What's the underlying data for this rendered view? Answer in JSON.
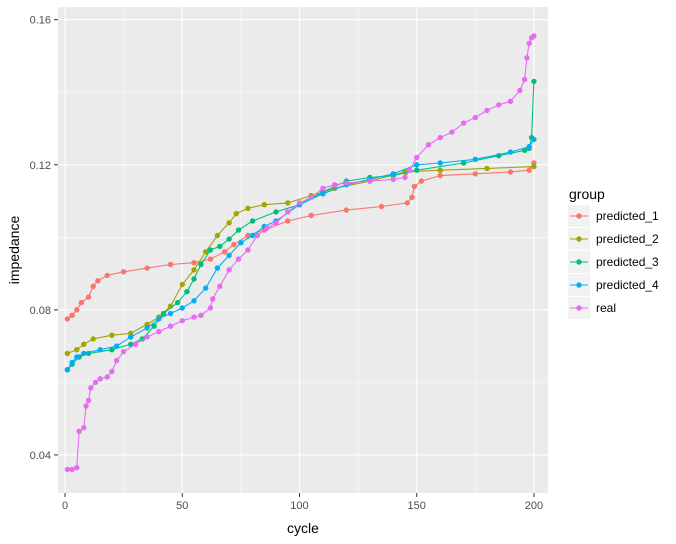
{
  "chart_data": {
    "type": "line",
    "title": "",
    "xlabel": "cycle",
    "ylabel": "impedance",
    "xlim": [
      -3,
      206
    ],
    "ylim": [
      0.0295,
      0.1635
    ],
    "x_ticks": [
      0,
      50,
      100,
      150,
      200
    ],
    "x_tick_labels": [
      "0",
      "50",
      "100",
      "150",
      "200"
    ],
    "y_ticks": [
      0.04,
      0.08,
      0.12,
      0.16
    ],
    "y_tick_labels": [
      "0.04",
      "0.08",
      "0.12",
      "0.16"
    ],
    "grid": true,
    "legend": {
      "title": "group",
      "position": "right"
    },
    "series": [
      {
        "name": "predicted_1",
        "color": "#F8766D",
        "points": [
          [
            1,
            0.0775
          ],
          [
            3,
            0.0785
          ],
          [
            5,
            0.08
          ],
          [
            7,
            0.082
          ],
          [
            10,
            0.0835
          ],
          [
            12,
            0.0865
          ],
          [
            14,
            0.088
          ],
          [
            18,
            0.0895
          ],
          [
            25,
            0.0905
          ],
          [
            35,
            0.0915
          ],
          [
            45,
            0.0925
          ],
          [
            55,
            0.093
          ],
          [
            62,
            0.094
          ],
          [
            68,
            0.096
          ],
          [
            72,
            0.098
          ],
          [
            78,
            0.1005
          ],
          [
            85,
            0.102
          ],
          [
            95,
            0.1045
          ],
          [
            105,
            0.106
          ],
          [
            120,
            0.1075
          ],
          [
            135,
            0.1085
          ],
          [
            146,
            0.1095
          ],
          [
            148,
            0.111
          ],
          [
            149,
            0.114
          ],
          [
            152,
            0.1155
          ],
          [
            160,
            0.117
          ],
          [
            175,
            0.1175
          ],
          [
            190,
            0.118
          ],
          [
            198,
            0.1185
          ],
          [
            200,
            0.1205
          ]
        ]
      },
      {
        "name": "predicted_2",
        "color": "#A3A500",
        "points": [
          [
            1,
            0.068
          ],
          [
            5,
            0.069
          ],
          [
            8,
            0.0705
          ],
          [
            12,
            0.072
          ],
          [
            20,
            0.073
          ],
          [
            28,
            0.0735
          ],
          [
            35,
            0.076
          ],
          [
            40,
            0.078
          ],
          [
            45,
            0.081
          ],
          [
            50,
            0.087
          ],
          [
            55,
            0.091
          ],
          [
            60,
            0.096
          ],
          [
            65,
            0.1005
          ],
          [
            70,
            0.104
          ],
          [
            73,
            0.1065
          ],
          [
            78,
            0.108
          ],
          [
            85,
            0.109
          ],
          [
            95,
            0.1095
          ],
          [
            105,
            0.1115
          ],
          [
            115,
            0.1135
          ],
          [
            130,
            0.1155
          ],
          [
            145,
            0.118
          ],
          [
            160,
            0.1185
          ],
          [
            180,
            0.119
          ],
          [
            200,
            0.1195
          ]
        ]
      },
      {
        "name": "predicted_3",
        "color": "#00BF7D",
        "points": [
          [
            1,
            0.0635
          ],
          [
            3,
            0.065
          ],
          [
            6,
            0.067
          ],
          [
            10,
            0.068
          ],
          [
            20,
            0.069
          ],
          [
            28,
            0.0705
          ],
          [
            33,
            0.072
          ],
          [
            38,
            0.0755
          ],
          [
            42,
            0.079
          ],
          [
            48,
            0.082
          ],
          [
            52,
            0.085
          ],
          [
            55,
            0.0885
          ],
          [
            58,
            0.0925
          ],
          [
            62,
            0.0965
          ],
          [
            66,
            0.0975
          ],
          [
            70,
            0.0995
          ],
          [
            74,
            0.102
          ],
          [
            80,
            0.1045
          ],
          [
            90,
            0.107
          ],
          [
            100,
            0.109
          ],
          [
            110,
            0.1125
          ],
          [
            120,
            0.1155
          ],
          [
            130,
            0.1165
          ],
          [
            140,
            0.117
          ],
          [
            150,
            0.1185
          ],
          [
            170,
            0.1205
          ],
          [
            185,
            0.1225
          ],
          [
            196,
            0.124
          ],
          [
            198,
            0.1245
          ],
          [
            199,
            0.1275
          ],
          [
            200,
            0.143
          ]
        ]
      },
      {
        "name": "predicted_4",
        "color": "#00B0F6",
        "points": [
          [
            1,
            0.0635
          ],
          [
            3,
            0.0655
          ],
          [
            5,
            0.067
          ],
          [
            8,
            0.068
          ],
          [
            15,
            0.069
          ],
          [
            22,
            0.07
          ],
          [
            28,
            0.0725
          ],
          [
            35,
            0.075
          ],
          [
            40,
            0.0775
          ],
          [
            45,
            0.079
          ],
          [
            50,
            0.0805
          ],
          [
            55,
            0.0825
          ],
          [
            60,
            0.086
          ],
          [
            65,
            0.0915
          ],
          [
            70,
            0.095
          ],
          [
            75,
            0.0985
          ],
          [
            80,
            0.1005
          ],
          [
            85,
            0.103
          ],
          [
            90,
            0.1045
          ],
          [
            100,
            0.109
          ],
          [
            110,
            0.112
          ],
          [
            120,
            0.1145
          ],
          [
            130,
            0.116
          ],
          [
            140,
            0.1175
          ],
          [
            150,
            0.12
          ],
          [
            160,
            0.1205
          ],
          [
            175,
            0.1215
          ],
          [
            190,
            0.1235
          ],
          [
            198,
            0.125
          ],
          [
            200,
            0.127
          ]
        ]
      },
      {
        "name": "real",
        "color": "#E76BF3",
        "points": [
          [
            1,
            0.036
          ],
          [
            3,
            0.036
          ],
          [
            5,
            0.0365
          ],
          [
            6,
            0.0465
          ],
          [
            8,
            0.0475
          ],
          [
            9,
            0.0535
          ],
          [
            10,
            0.055
          ],
          [
            11,
            0.0585
          ],
          [
            13,
            0.06
          ],
          [
            15,
            0.061
          ],
          [
            18,
            0.0615
          ],
          [
            20,
            0.063
          ],
          [
            22,
            0.066
          ],
          [
            25,
            0.0685
          ],
          [
            30,
            0.0705
          ],
          [
            35,
            0.0725
          ],
          [
            40,
            0.074
          ],
          [
            45,
            0.0755
          ],
          [
            50,
            0.077
          ],
          [
            55,
            0.078
          ],
          [
            58,
            0.0785
          ],
          [
            62,
            0.0805
          ],
          [
            63,
            0.083
          ],
          [
            66,
            0.0865
          ],
          [
            70,
            0.091
          ],
          [
            74,
            0.094
          ],
          [
            78,
            0.0965
          ],
          [
            82,
            0.1005
          ],
          [
            86,
            0.1025
          ],
          [
            90,
            0.104
          ],
          [
            95,
            0.107
          ],
          [
            100,
            0.1095
          ],
          [
            105,
            0.111
          ],
          [
            110,
            0.1135
          ],
          [
            115,
            0.1145
          ],
          [
            120,
            0.115
          ],
          [
            130,
            0.1155
          ],
          [
            140,
            0.116
          ],
          [
            145,
            0.1165
          ],
          [
            147,
            0.1185
          ],
          [
            150,
            0.122
          ],
          [
            155,
            0.1255
          ],
          [
            160,
            0.1275
          ],
          [
            165,
            0.129
          ],
          [
            170,
            0.1315
          ],
          [
            175,
            0.133
          ],
          [
            180,
            0.135
          ],
          [
            185,
            0.1365
          ],
          [
            190,
            0.1375
          ],
          [
            194,
            0.1405
          ],
          [
            196,
            0.1435
          ],
          [
            197,
            0.1495
          ],
          [
            198,
            0.1535
          ],
          [
            199,
            0.155
          ],
          [
            200,
            0.1555
          ]
        ]
      }
    ]
  }
}
